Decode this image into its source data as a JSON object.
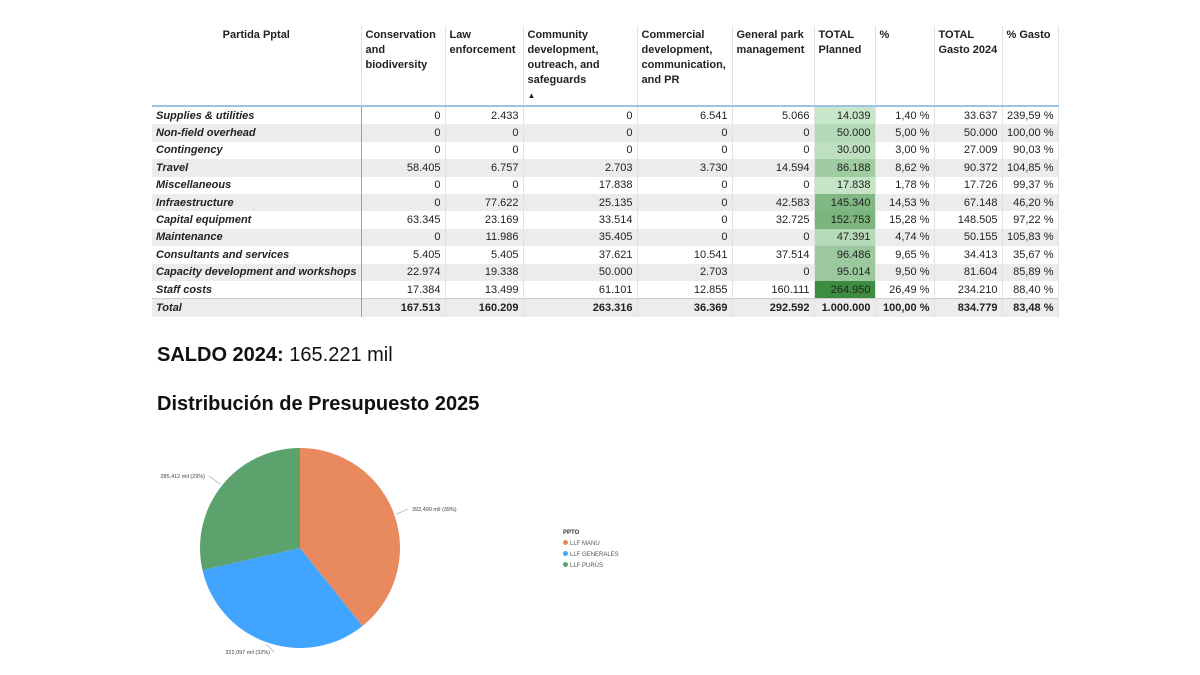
{
  "table": {
    "headers": [
      "Partida Pptal",
      "Conservation and biodiversity",
      "Law enforcement",
      "Community development, outreach, and safeguards",
      "Commercial development, communication, and PR",
      "General park management",
      "TOTAL Planned",
      "%",
      "TOTAL Gasto 2024",
      "% Gasto"
    ],
    "sort_indicator": "▲",
    "rows": [
      [
        "Supplies & utilities",
        "0",
        "2.433",
        "0",
        "6.541",
        "5.066",
        "14.039",
        "1,40 %",
        "33.637",
        "239,59 %"
      ],
      [
        "Non-field overhead",
        "0",
        "0",
        "0",
        "0",
        "0",
        "50.000",
        "5,00 %",
        "50.000",
        "100,00 %"
      ],
      [
        "Contingency",
        "0",
        "0",
        "0",
        "0",
        "0",
        "30.000",
        "3,00 %",
        "27.009",
        "90,03 %"
      ],
      [
        "Travel",
        "58.405",
        "6.757",
        "2.703",
        "3.730",
        "14.594",
        "86.188",
        "8,62 %",
        "90.372",
        "104,85 %"
      ],
      [
        "Miscellaneous",
        "0",
        "0",
        "17.838",
        "0",
        "0",
        "17.838",
        "1,78 %",
        "17.726",
        "99,37 %"
      ],
      [
        "Infraestructure",
        "0",
        "77.622",
        "25.135",
        "0",
        "42.583",
        "145.340",
        "14,53 %",
        "67.148",
        "46,20 %"
      ],
      [
        "Capital equipment",
        "63.345",
        "23.169",
        "33.514",
        "0",
        "32.725",
        "152.753",
        "15,28 %",
        "148.505",
        "97,22 %"
      ],
      [
        "Maintenance",
        "0",
        "11.986",
        "35.405",
        "0",
        "0",
        "47.391",
        "4,74 %",
        "50.155",
        "105,83 %"
      ],
      [
        "Consultants and services",
        "5.405",
        "5.405",
        "37.621",
        "10.541",
        "37.514",
        "96.486",
        "9,65 %",
        "34.413",
        "35,67 %"
      ],
      [
        "Capacity development and workshops",
        "22.974",
        "19.338",
        "50.000",
        "2.703",
        "0",
        "95.014",
        "9,50 %",
        "81.604",
        "85,89 %"
      ],
      [
        "Staff costs",
        "17.384",
        "13.499",
        "61.101",
        "12.855",
        "160.111",
        "264.950",
        "26,49 %",
        "234.210",
        "88,40 %"
      ]
    ],
    "total": [
      "Total",
      "167.513",
      "160.209",
      "263.316",
      "36.369",
      "292.592",
      "1.000.000",
      "100,00 %",
      "834.779",
      "83,48 %"
    ]
  },
  "saldo": {
    "label": "SALDO 2024:",
    "value": "165.221 mil"
  },
  "chart_title": "Distribución de Presupuesto 2025",
  "chart_data": {
    "type": "pie",
    "title": "Distribución de Presupuesto 2025",
    "legend_title": "PPTO",
    "categories": [
      "LLF MANU",
      "LLF GENERALES",
      "LLF PURÚS"
    ],
    "values": [
      392490,
      322097,
      285412
    ],
    "labels": [
      "392,490 mil (39%)",
      "322,097 mil (32%)",
      "285,412 mil (29%)"
    ],
    "colors": [
      "#E98A5E",
      "#41A5FF",
      "#5BA26D"
    ],
    "legend_position": "right"
  }
}
